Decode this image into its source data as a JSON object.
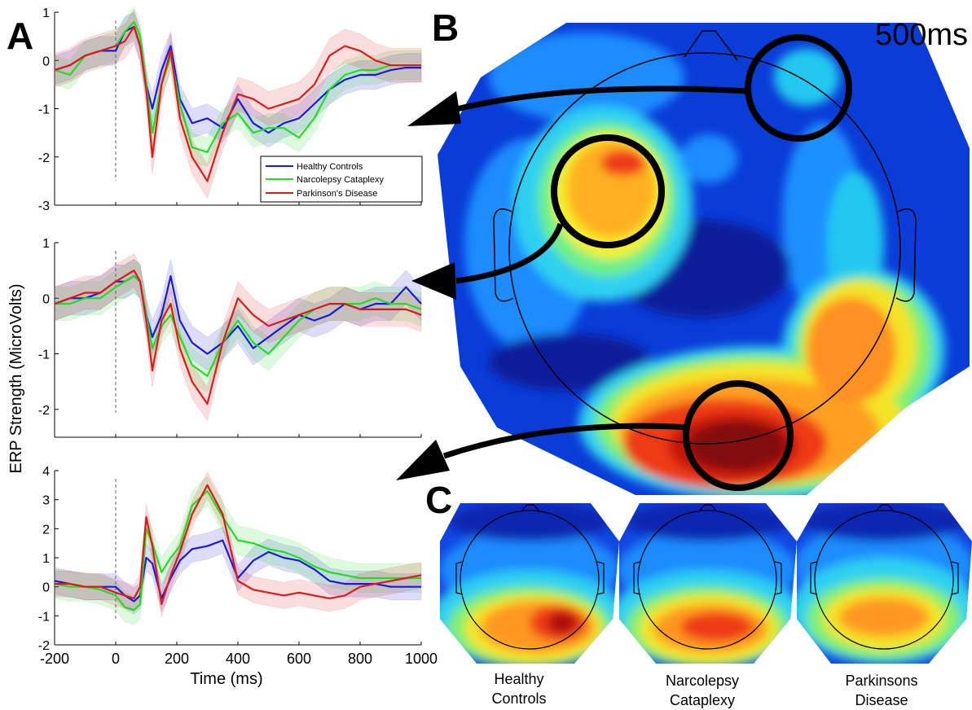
{
  "figure": {
    "panel_labels": {
      "a": "A",
      "b": "B",
      "c": "C"
    },
    "time_label": "500ms",
    "topo_labels": [
      [
        "Healthy",
        "Controls"
      ],
      [
        "Narcolepsy",
        "Cataplexy"
      ],
      [
        "Parkinsons",
        "Disease"
      ]
    ]
  },
  "colors": {
    "healthy": "#1a1adf",
    "narcolepsy": "#22dd22",
    "parkinson": "#dd1a1a"
  },
  "chart_data": [
    {
      "type": "line",
      "panel": "A-top",
      "xlabel": "",
      "ylabel": "ERP Strength (MicroVolts)",
      "xlim": [
        -200,
        1000
      ],
      "ylim": [
        -3,
        1
      ],
      "yticks": [
        1,
        0,
        -1,
        -2,
        -3
      ],
      "legend": {
        "placement": "right",
        "entries": [
          "Healthy Controls",
          "Narcolepsy Cataplexy",
          "Parkinson's Disease"
        ]
      },
      "x": [
        -200,
        -150,
        -100,
        -50,
        0,
        30,
        60,
        80,
        100,
        120,
        150,
        180,
        210,
        250,
        300,
        350,
        400,
        450,
        500,
        550,
        600,
        650,
        700,
        750,
        800,
        850,
        900,
        950,
        1000
      ],
      "series": [
        {
          "name": "Healthy Controls",
          "color_key": "healthy",
          "values": [
            -0.2,
            -0.1,
            0.1,
            0.2,
            0.2,
            0.6,
            0.7,
            0.3,
            -0.5,
            -1.0,
            -0.2,
            0.3,
            -0.8,
            -1.3,
            -1.2,
            -1.4,
            -0.8,
            -1.3,
            -1.5,
            -1.3,
            -1.2,
            -0.9,
            -0.6,
            -0.4,
            -0.3,
            -0.3,
            -0.2,
            -0.15,
            -0.15
          ],
          "band": 0.3
        },
        {
          "name": "Narcolepsy Cataplexy",
          "color_key": "narcolepsy",
          "values": [
            -0.2,
            -0.3,
            0.1,
            0.2,
            0.3,
            0.6,
            0.8,
            0.5,
            -0.5,
            -1.5,
            -0.5,
            0.1,
            -0.9,
            -1.8,
            -1.9,
            -1.3,
            -1.1,
            -1.5,
            -1.4,
            -1.4,
            -1.6,
            -1.2,
            -0.6,
            -0.3,
            -0.2,
            -0.2,
            -0.1,
            -0.1,
            -0.1
          ],
          "band": 0.3
        },
        {
          "name": "Parkinson's Disease",
          "color_key": "parkinson",
          "values": [
            -0.2,
            -0.1,
            0.1,
            0.2,
            0.3,
            0.4,
            0.7,
            0.3,
            -0.6,
            -2.0,
            -0.5,
            0.2,
            -1.2,
            -2.0,
            -2.5,
            -1.5,
            -0.7,
            -0.8,
            -1.0,
            -0.9,
            -0.8,
            -0.5,
            0.1,
            0.3,
            0.2,
            0.0,
            -0.1,
            -0.1,
            -0.1
          ],
          "band": 0.35
        }
      ]
    },
    {
      "type": "line",
      "panel": "A-middle",
      "xlabel": "",
      "ylabel": "",
      "xlim": [
        -200,
        1000
      ],
      "ylim": [
        -2.5,
        1
      ],
      "yticks": [
        1,
        0,
        -1,
        -2
      ],
      "x": [
        -200,
        -150,
        -100,
        -50,
        0,
        30,
        60,
        80,
        100,
        120,
        150,
        180,
        210,
        250,
        300,
        350,
        400,
        450,
        500,
        550,
        600,
        650,
        700,
        750,
        800,
        850,
        900,
        950,
        1000
      ],
      "series": [
        {
          "name": "Healthy Controls",
          "color_key": "healthy",
          "values": [
            -0.1,
            0.0,
            0.0,
            0.1,
            0.3,
            0.3,
            0.4,
            0.3,
            -0.3,
            -0.7,
            -0.3,
            0.4,
            -0.4,
            -0.8,
            -1.0,
            -0.8,
            -0.5,
            -0.9,
            -0.7,
            -0.5,
            -0.3,
            -0.4,
            -0.3,
            -0.1,
            -0.2,
            -0.1,
            -0.1,
            0.2,
            -0.1
          ],
          "band": 0.3
        },
        {
          "name": "Narcolepsy Cataplexy",
          "color_key": "narcolepsy",
          "values": [
            -0.1,
            -0.1,
            0.0,
            0.0,
            0.2,
            0.3,
            0.4,
            0.3,
            -0.3,
            -0.9,
            -0.5,
            -0.3,
            -0.7,
            -1.2,
            -1.4,
            -0.8,
            -0.4,
            -0.8,
            -1.0,
            -0.7,
            -0.4,
            -0.2,
            -0.1,
            -0.1,
            -0.1,
            0.0,
            -0.1,
            -0.1,
            -0.2
          ],
          "band": 0.3
        },
        {
          "name": "Parkinson's Disease",
          "color_key": "parkinson",
          "values": [
            -0.1,
            0.0,
            0.1,
            0.1,
            0.3,
            0.4,
            0.5,
            0.3,
            -0.4,
            -1.3,
            -0.4,
            -0.1,
            -0.9,
            -1.5,
            -1.9,
            -0.8,
            0.0,
            -0.3,
            -0.5,
            -0.4,
            -0.3,
            -0.2,
            -0.1,
            -0.1,
            -0.2,
            -0.2,
            -0.2,
            -0.2,
            -0.3
          ],
          "band": 0.3
        }
      ]
    },
    {
      "type": "line",
      "panel": "A-bottom",
      "xlabel": "Time (ms)",
      "ylabel": "",
      "xlim": [
        -200,
        1000
      ],
      "ylim": [
        -2,
        4
      ],
      "yticks": [
        4,
        3,
        2,
        1,
        0,
        -1,
        -2
      ],
      "xticks": [
        -200,
        0,
        200,
        400,
        600,
        800,
        1000
      ],
      "x": [
        -200,
        -150,
        -100,
        -50,
        0,
        30,
        60,
        80,
        100,
        120,
        150,
        180,
        210,
        250,
        300,
        350,
        400,
        450,
        500,
        550,
        600,
        650,
        700,
        750,
        800,
        850,
        900,
        950,
        1000
      ],
      "series": [
        {
          "name": "Healthy Controls",
          "color_key": "healthy",
          "values": [
            0.2,
            0.1,
            0.0,
            0.0,
            0.0,
            -0.3,
            -0.5,
            -0.3,
            1.0,
            0.8,
            -0.4,
            0.3,
            0.9,
            1.3,
            1.4,
            1.6,
            0.3,
            0.9,
            1.2,
            1.0,
            0.9,
            0.6,
            0.2,
            0.1,
            0.1,
            0.1,
            0.0,
            0.0,
            0.0
          ],
          "band": 0.45
        },
        {
          "name": "Narcolepsy Cataplexy",
          "color_key": "narcolepsy",
          "values": [
            0.1,
            0.0,
            0.0,
            -0.1,
            -0.3,
            -0.7,
            -0.8,
            -0.6,
            2.0,
            1.5,
            0.5,
            1.0,
            1.4,
            2.8,
            3.3,
            2.4,
            1.6,
            1.5,
            1.3,
            1.2,
            1.0,
            0.7,
            0.5,
            0.4,
            0.3,
            0.3,
            0.3,
            0.3,
            0.3
          ],
          "band": 0.5
        },
        {
          "name": "Parkinson's Disease",
          "color_key": "parkinson",
          "values": [
            0.1,
            0.1,
            0.0,
            0.0,
            -0.2,
            -0.3,
            -0.4,
            0.0,
            2.4,
            1.4,
            -0.6,
            0.4,
            1.2,
            2.5,
            3.5,
            2.5,
            0.2,
            -0.1,
            -0.2,
            -0.3,
            -0.2,
            -0.3,
            -0.4,
            -0.3,
            0.0,
            0.1,
            0.2,
            0.3,
            0.4
          ],
          "band": 0.45
        }
      ]
    }
  ]
}
